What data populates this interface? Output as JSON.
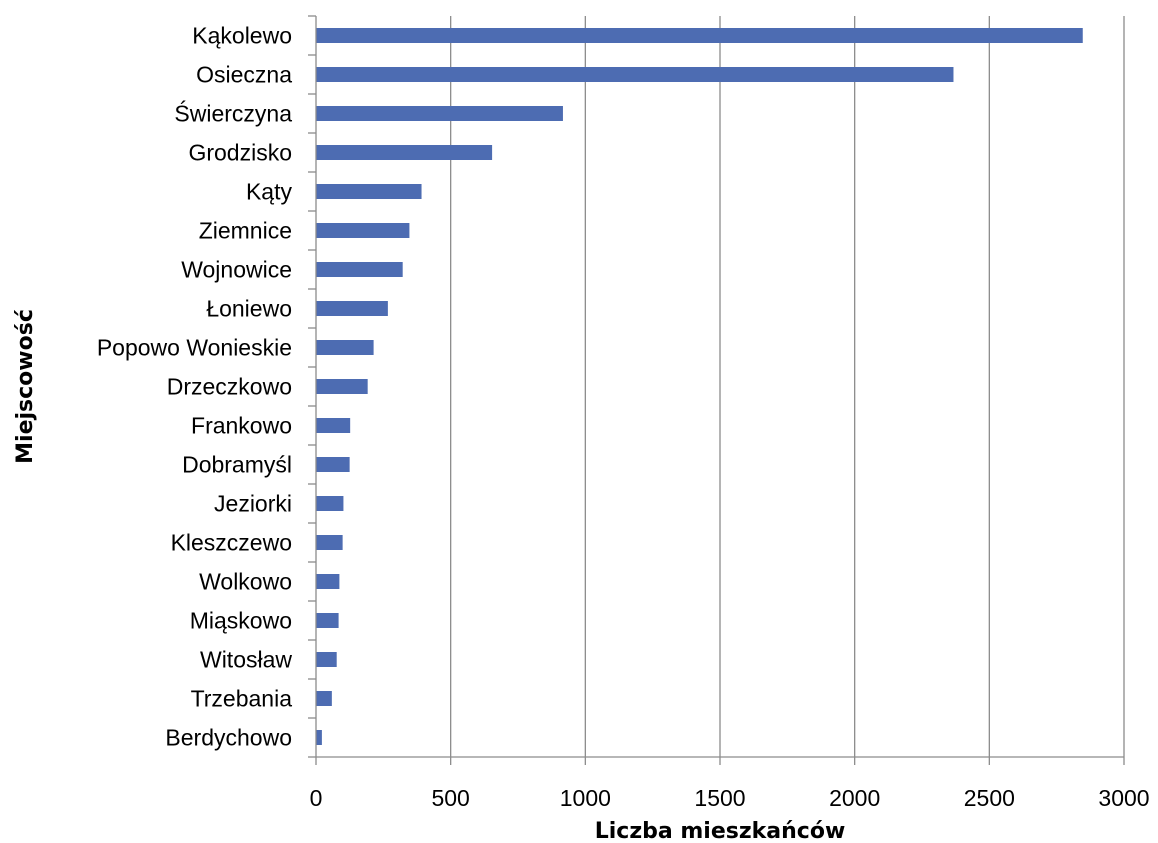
{
  "chart_data": {
    "type": "bar",
    "orientation": "horizontal",
    "categories": [
      "Kąkolewo",
      "Osieczna",
      "Świerczyna",
      "Grodzisko",
      "Kąty",
      "Ziemnice",
      "Wojnowice",
      "Łoniewo",
      "Popowo Wonieskie",
      "Drzeczkowo",
      "Frankowo",
      "Dobramyśl",
      "Jeziorki",
      "Kleszczewo",
      "Wolkowo",
      "Miąskowo",
      "Witosław",
      "Trzebania",
      "Berdychowo"
    ],
    "values": [
      2845,
      2365,
      915,
      652,
      390,
      345,
      320,
      265,
      212,
      190,
      125,
      123,
      100,
      97,
      85,
      82,
      75,
      57,
      20
    ],
    "xlabel": "Liczba mieszkańców",
    "ylabel": "Miejscowość",
    "xlim": [
      0,
      3000
    ],
    "xticks": [
      "0",
      "500",
      "1000",
      "1500",
      "2000",
      "2500",
      "3000"
    ],
    "grid": "vertical",
    "legend": "none",
    "colors": {
      "bar": "#4d6cb2",
      "grid": "#8c8c8c",
      "axis": "#8c8c8c"
    }
  }
}
